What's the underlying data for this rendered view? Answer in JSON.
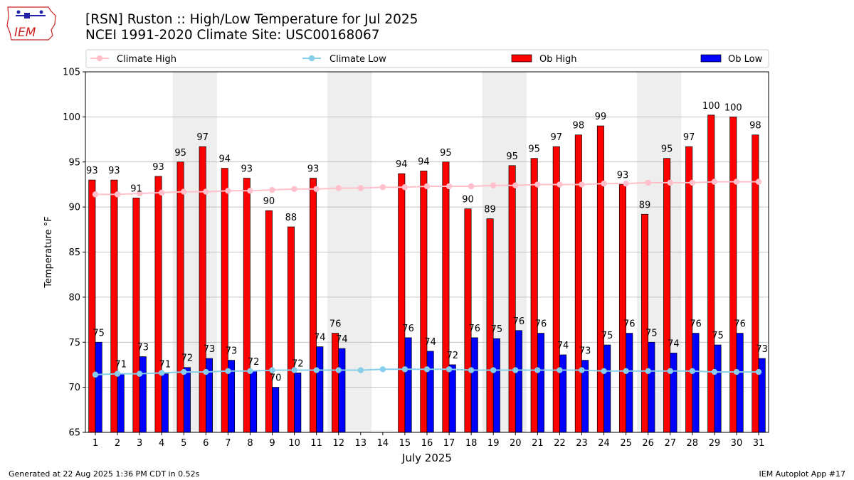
{
  "header": {
    "title_line1": "[RSN] Ruston :: High/Low Temperature for Jul 2025",
    "title_line2": "NCEI 1991-2020 Climate Site: USC00168067",
    "logo_text": "IEM"
  },
  "footer": {
    "generated": "Generated at 22 Aug 2025 1:36 PM CDT in 0.52s",
    "app": "IEM Autoplot App #17"
  },
  "colors": {
    "ob_high": "#ff0000",
    "ob_low": "#0000ff",
    "climate_high": "#ffc0cb",
    "climate_low": "#87ceeb",
    "weekend_shade": "#eeeeee",
    "grid": "#b0b0b0"
  },
  "chart_data": {
    "type": "bar",
    "title": "[RSN] Ruston :: High/Low Temperature for Jul 2025",
    "subtitle": "NCEI 1991-2020 Climate Site: USC00168067",
    "xlabel": "July 2025",
    "ylabel": "Temperature °F",
    "ylim": [
      65,
      105
    ],
    "yticks": [
      65,
      70,
      75,
      80,
      85,
      90,
      95,
      100,
      105
    ],
    "grid": true,
    "legend_position": "top",
    "legend": [
      "Climate High",
      "Climate Low",
      "Ob High",
      "Ob Low"
    ],
    "days": [
      1,
      2,
      3,
      4,
      5,
      6,
      7,
      8,
      9,
      10,
      11,
      12,
      13,
      14,
      15,
      16,
      17,
      18,
      19,
      20,
      21,
      22,
      23,
      24,
      25,
      26,
      27,
      28,
      29,
      30,
      31
    ],
    "shaded_days": [
      [
        5,
        6
      ],
      [
        12,
        13
      ],
      [
        19,
        20
      ],
      [
        26,
        27
      ]
    ],
    "series": [
      {
        "name": "Ob High",
        "kind": "bar",
        "values": [
          93,
          93,
          91,
          93.4,
          95,
          96.7,
          94.3,
          93.2,
          89.6,
          87.8,
          93.2,
          76,
          null,
          null,
          93.7,
          94,
          95,
          89.8,
          88.7,
          94.6,
          95.4,
          96.7,
          98,
          99,
          92.5,
          89.2,
          95.4,
          96.7,
          100.2,
          100,
          98
        ],
        "labels": [
          "93",
          "93",
          "91",
          "93",
          "95",
          "97",
          "94",
          "93",
          "90",
          "88",
          "93",
          "76",
          "",
          "",
          "94",
          "94",
          "95",
          "90",
          "89",
          "95",
          "95",
          "97",
          "98",
          "99",
          "93",
          "89",
          "95",
          "97",
          "100",
          "100",
          "98"
        ]
      },
      {
        "name": "Ob Low",
        "kind": "bar",
        "values": [
          75,
          71.5,
          73.4,
          71.5,
          72.2,
          73.2,
          73,
          71.8,
          70,
          71.6,
          74.5,
          74.3,
          null,
          null,
          75.5,
          74,
          72.5,
          75.5,
          75.4,
          76.3,
          76,
          73.6,
          73,
          74.7,
          76,
          75,
          73.8,
          76,
          74.7,
          76,
          73.2
        ],
        "labels": [
          "75",
          "71",
          "73",
          "71",
          "72",
          "73",
          "73",
          "72",
          "70",
          "72",
          "74",
          "74",
          "",
          "",
          "76",
          "74",
          "72",
          "76",
          "75",
          "76",
          "76",
          "74",
          "73",
          "75",
          "76",
          "75",
          "74",
          "76",
          "75",
          "76",
          "73"
        ]
      },
      {
        "name": "Climate High",
        "kind": "line",
        "values": [
          91.4,
          91.4,
          91.5,
          91.6,
          91.7,
          91.7,
          91.8,
          91.8,
          91.9,
          92,
          92,
          92.1,
          92.1,
          92.2,
          92.2,
          92.3,
          92.3,
          92.3,
          92.4,
          92.4,
          92.5,
          92.5,
          92.5,
          92.6,
          92.6,
          92.7,
          92.7,
          92.7,
          92.8,
          92.8,
          92.8
        ]
      },
      {
        "name": "Climate Low",
        "kind": "line",
        "values": [
          71.4,
          71.5,
          71.5,
          71.6,
          71.7,
          71.7,
          71.8,
          71.8,
          71.9,
          71.9,
          71.9,
          71.9,
          71.9,
          72,
          72,
          72,
          72,
          71.9,
          71.9,
          71.9,
          71.9,
          71.9,
          71.9,
          71.8,
          71.8,
          71.8,
          71.8,
          71.8,
          71.7,
          71.7,
          71.7
        ]
      }
    ]
  }
}
